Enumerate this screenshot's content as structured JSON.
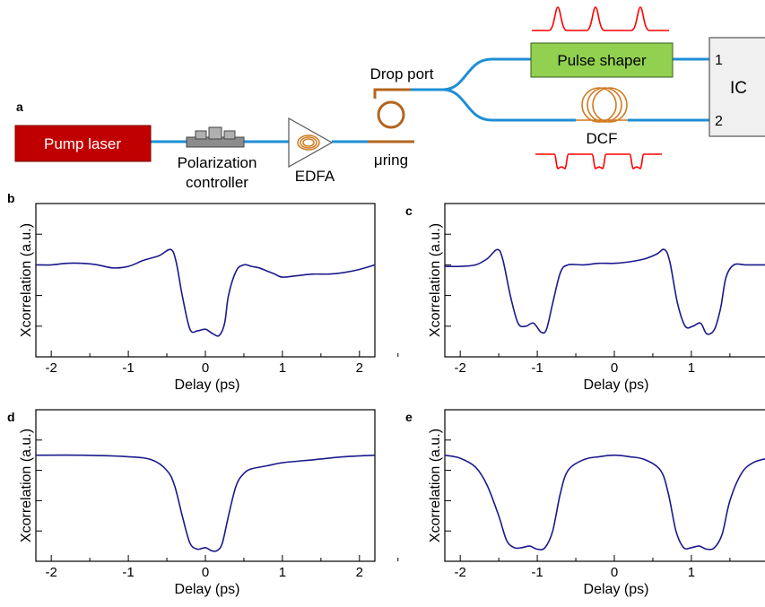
{
  "schematic": {
    "panel_label": "a",
    "pump_laser": "Pump laser",
    "polarization_controller_line1": "Polarization",
    "polarization_controller_line2": "controller",
    "edfa": "EDFA",
    "ring": "μring",
    "drop_port": "Drop port",
    "pulse_shaper": "Pulse shaper",
    "dcf": "DCF",
    "ic": "IC",
    "port1": "1",
    "port2": "2"
  },
  "colors": {
    "pump_laser_fill": "#c00000",
    "pulse_shaper_fill": "#92d050",
    "fiber": "#1f8fd6",
    "ring": "#b3651f",
    "pulse": "#ff0000",
    "trace": "#1a1a8c"
  },
  "chart_data": [
    {
      "panel": "b",
      "type": "line",
      "xlabel": "Delay (ps)",
      "ylabel": "Xcorrelation (a.u.)",
      "xlim": [
        -2.2,
        2.2
      ],
      "xticks": [
        "-2",
        "-1",
        "0",
        "1",
        "2"
      ],
      "ylim": [
        0,
        1
      ],
      "y_tick_labels": "none",
      "series": [
        {
          "x": [
            -2.2,
            -2.0,
            -1.8,
            -1.6,
            -1.4,
            -1.2,
            -1.0,
            -0.8,
            -0.6,
            -0.45,
            -0.38,
            -0.3,
            -0.2,
            -0.1,
            0.0,
            0.1,
            0.18,
            0.25,
            0.3,
            0.4,
            0.5,
            0.6,
            0.7,
            0.8,
            0.9,
            1.0,
            1.2,
            1.4,
            1.6,
            1.8,
            2.0,
            2.2
          ],
          "y": [
            0.6,
            0.6,
            0.61,
            0.61,
            0.6,
            0.58,
            0.59,
            0.63,
            0.66,
            0.7,
            0.62,
            0.4,
            0.18,
            0.17,
            0.18,
            0.15,
            0.14,
            0.22,
            0.4,
            0.56,
            0.6,
            0.59,
            0.58,
            0.56,
            0.54,
            0.52,
            0.53,
            0.54,
            0.54,
            0.55,
            0.57,
            0.6
          ]
        }
      ]
    },
    {
      "panel": "c",
      "type": "line",
      "xlabel": "Delay (ps)",
      "ylabel": "Xcorrelation (a.u.)",
      "xlim": [
        -2.2,
        2.2
      ],
      "xticks": [
        "-2",
        "-1",
        "0",
        "1",
        "2"
      ],
      "ylim": [
        0,
        1
      ],
      "y_tick_labels": "none",
      "series": [
        {
          "x": [
            -2.2,
            -2.0,
            -1.8,
            -1.65,
            -1.52,
            -1.45,
            -1.35,
            -1.25,
            -1.15,
            -1.05,
            -0.95,
            -0.88,
            -0.8,
            -0.7,
            -0.6,
            -0.4,
            -0.2,
            0.0,
            0.2,
            0.4,
            0.55,
            0.65,
            0.72,
            0.82,
            0.92,
            1.02,
            1.12,
            1.2,
            1.3,
            1.38,
            1.45,
            1.55,
            1.7,
            1.9,
            2.2
          ],
          "y": [
            0.59,
            0.59,
            0.6,
            0.64,
            0.7,
            0.64,
            0.4,
            0.22,
            0.2,
            0.22,
            0.16,
            0.18,
            0.35,
            0.55,
            0.6,
            0.6,
            0.61,
            0.61,
            0.62,
            0.64,
            0.67,
            0.7,
            0.62,
            0.35,
            0.2,
            0.2,
            0.22,
            0.15,
            0.18,
            0.32,
            0.52,
            0.6,
            0.6,
            0.6,
            0.6
          ]
        }
      ]
    },
    {
      "panel": "d",
      "type": "line",
      "xlabel": "Delay (ps)",
      "ylabel": "Xcorrelation (a.u.)",
      "xlim": [
        -2.2,
        2.2
      ],
      "xticks": [
        "-2",
        "-1",
        "0",
        "1",
        "2"
      ],
      "ylim": [
        0,
        1
      ],
      "y_tick_labels": "none",
      "series": [
        {
          "x": [
            -2.2,
            -1.6,
            -1.0,
            -0.7,
            -0.5,
            -0.4,
            -0.3,
            -0.2,
            -0.1,
            0.0,
            0.08,
            0.15,
            0.22,
            0.3,
            0.4,
            0.5,
            0.6,
            0.8,
            1.0,
            1.4,
            1.8,
            2.2
          ],
          "y": [
            0.7,
            0.7,
            0.69,
            0.67,
            0.6,
            0.5,
            0.3,
            0.12,
            0.08,
            0.09,
            0.07,
            0.07,
            0.12,
            0.3,
            0.5,
            0.58,
            0.61,
            0.63,
            0.65,
            0.67,
            0.69,
            0.7
          ]
        }
      ]
    },
    {
      "panel": "e",
      "type": "line",
      "xlabel": "Delay (ps)",
      "ylabel": "Xcorrelation (a.u.)",
      "xlim": [
        -2.2,
        2.2
      ],
      "xticks": [
        "-2",
        "-1",
        "0",
        "1",
        "2"
      ],
      "ylim": [
        0,
        1
      ],
      "y_tick_labels": "none",
      "series": [
        {
          "x": [
            -2.2,
            -2.0,
            -1.8,
            -1.65,
            -1.5,
            -1.4,
            -1.3,
            -1.2,
            -1.1,
            -1.0,
            -0.9,
            -0.8,
            -0.7,
            -0.6,
            -0.4,
            -0.2,
            0.0,
            0.2,
            0.4,
            0.6,
            0.7,
            0.8,
            0.9,
            1.0,
            1.1,
            1.2,
            1.3,
            1.4,
            1.5,
            1.65,
            1.8,
            2.0,
            2.2
          ],
          "y": [
            0.7,
            0.68,
            0.62,
            0.5,
            0.3,
            0.14,
            0.09,
            0.09,
            0.1,
            0.08,
            0.09,
            0.2,
            0.45,
            0.6,
            0.67,
            0.69,
            0.7,
            0.69,
            0.67,
            0.6,
            0.45,
            0.2,
            0.09,
            0.09,
            0.1,
            0.08,
            0.09,
            0.18,
            0.4,
            0.58,
            0.65,
            0.68,
            0.69
          ]
        }
      ]
    }
  ]
}
